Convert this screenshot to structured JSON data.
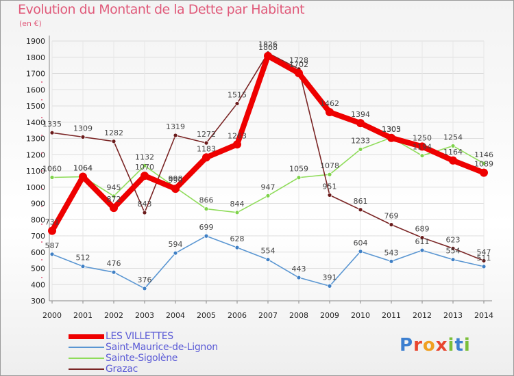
{
  "chart_data": {
    "type": "line",
    "title": "Evolution du Montant de la Dette par Habitant",
    "subtitle": "(en €)",
    "x": [
      "2000",
      "2001",
      "2002",
      "2003",
      "2004",
      "2005",
      "2006",
      "2007",
      "2008",
      "2009",
      "2010",
      "2011",
      "2012",
      "2013",
      "2014"
    ],
    "ylim": [
      300,
      1900
    ],
    "yticks": [
      300,
      400,
      500,
      600,
      700,
      800,
      900,
      1000,
      1100,
      1200,
      1300,
      1400,
      1500,
      1600,
      1700,
      1800,
      1900
    ],
    "grid": true,
    "legend_position": "bottom-left",
    "series": [
      {
        "name": "LES VILLETTES",
        "color": "#ee0000",
        "values": [
          731,
          1064,
          872,
          1070,
          990,
          1183,
          1263,
          1808,
          1702,
          1462,
          1394,
          1303,
          1250,
          1164,
          1089
        ]
      },
      {
        "name": "Saint-Maurice-de-Lignon",
        "color": "#5a96d2",
        "values": [
          587,
          512,
          476,
          376,
          594,
          699,
          628,
          554,
          443,
          391,
          604,
          543,
          611,
          554,
          511
        ]
      },
      {
        "name": "Sainte-Sigolène",
        "color": "#8fdc5a",
        "values": [
          1060,
          1064,
          945,
          1132,
          998,
          866,
          844,
          947,
          1059,
          1078,
          1233,
          1305,
          1194,
          1254,
          1146
        ]
      },
      {
        "name": "Grazac",
        "color": "#7a2525",
        "values": [
          1335,
          1309,
          1282,
          843,
          1319,
          1272,
          1515,
          1826,
          1728,
          951,
          861,
          769,
          689,
          623,
          547
        ]
      }
    ]
  },
  "logo": {
    "letters": [
      "P",
      "r",
      "o",
      "x",
      "i",
      "t",
      "i"
    ],
    "colors": [
      "#3c7fd0",
      "#e8452e",
      "#f0a020",
      "#e8452e",
      "#7bbf3a",
      "#3c7fd0",
      "#7bbf3a"
    ]
  }
}
